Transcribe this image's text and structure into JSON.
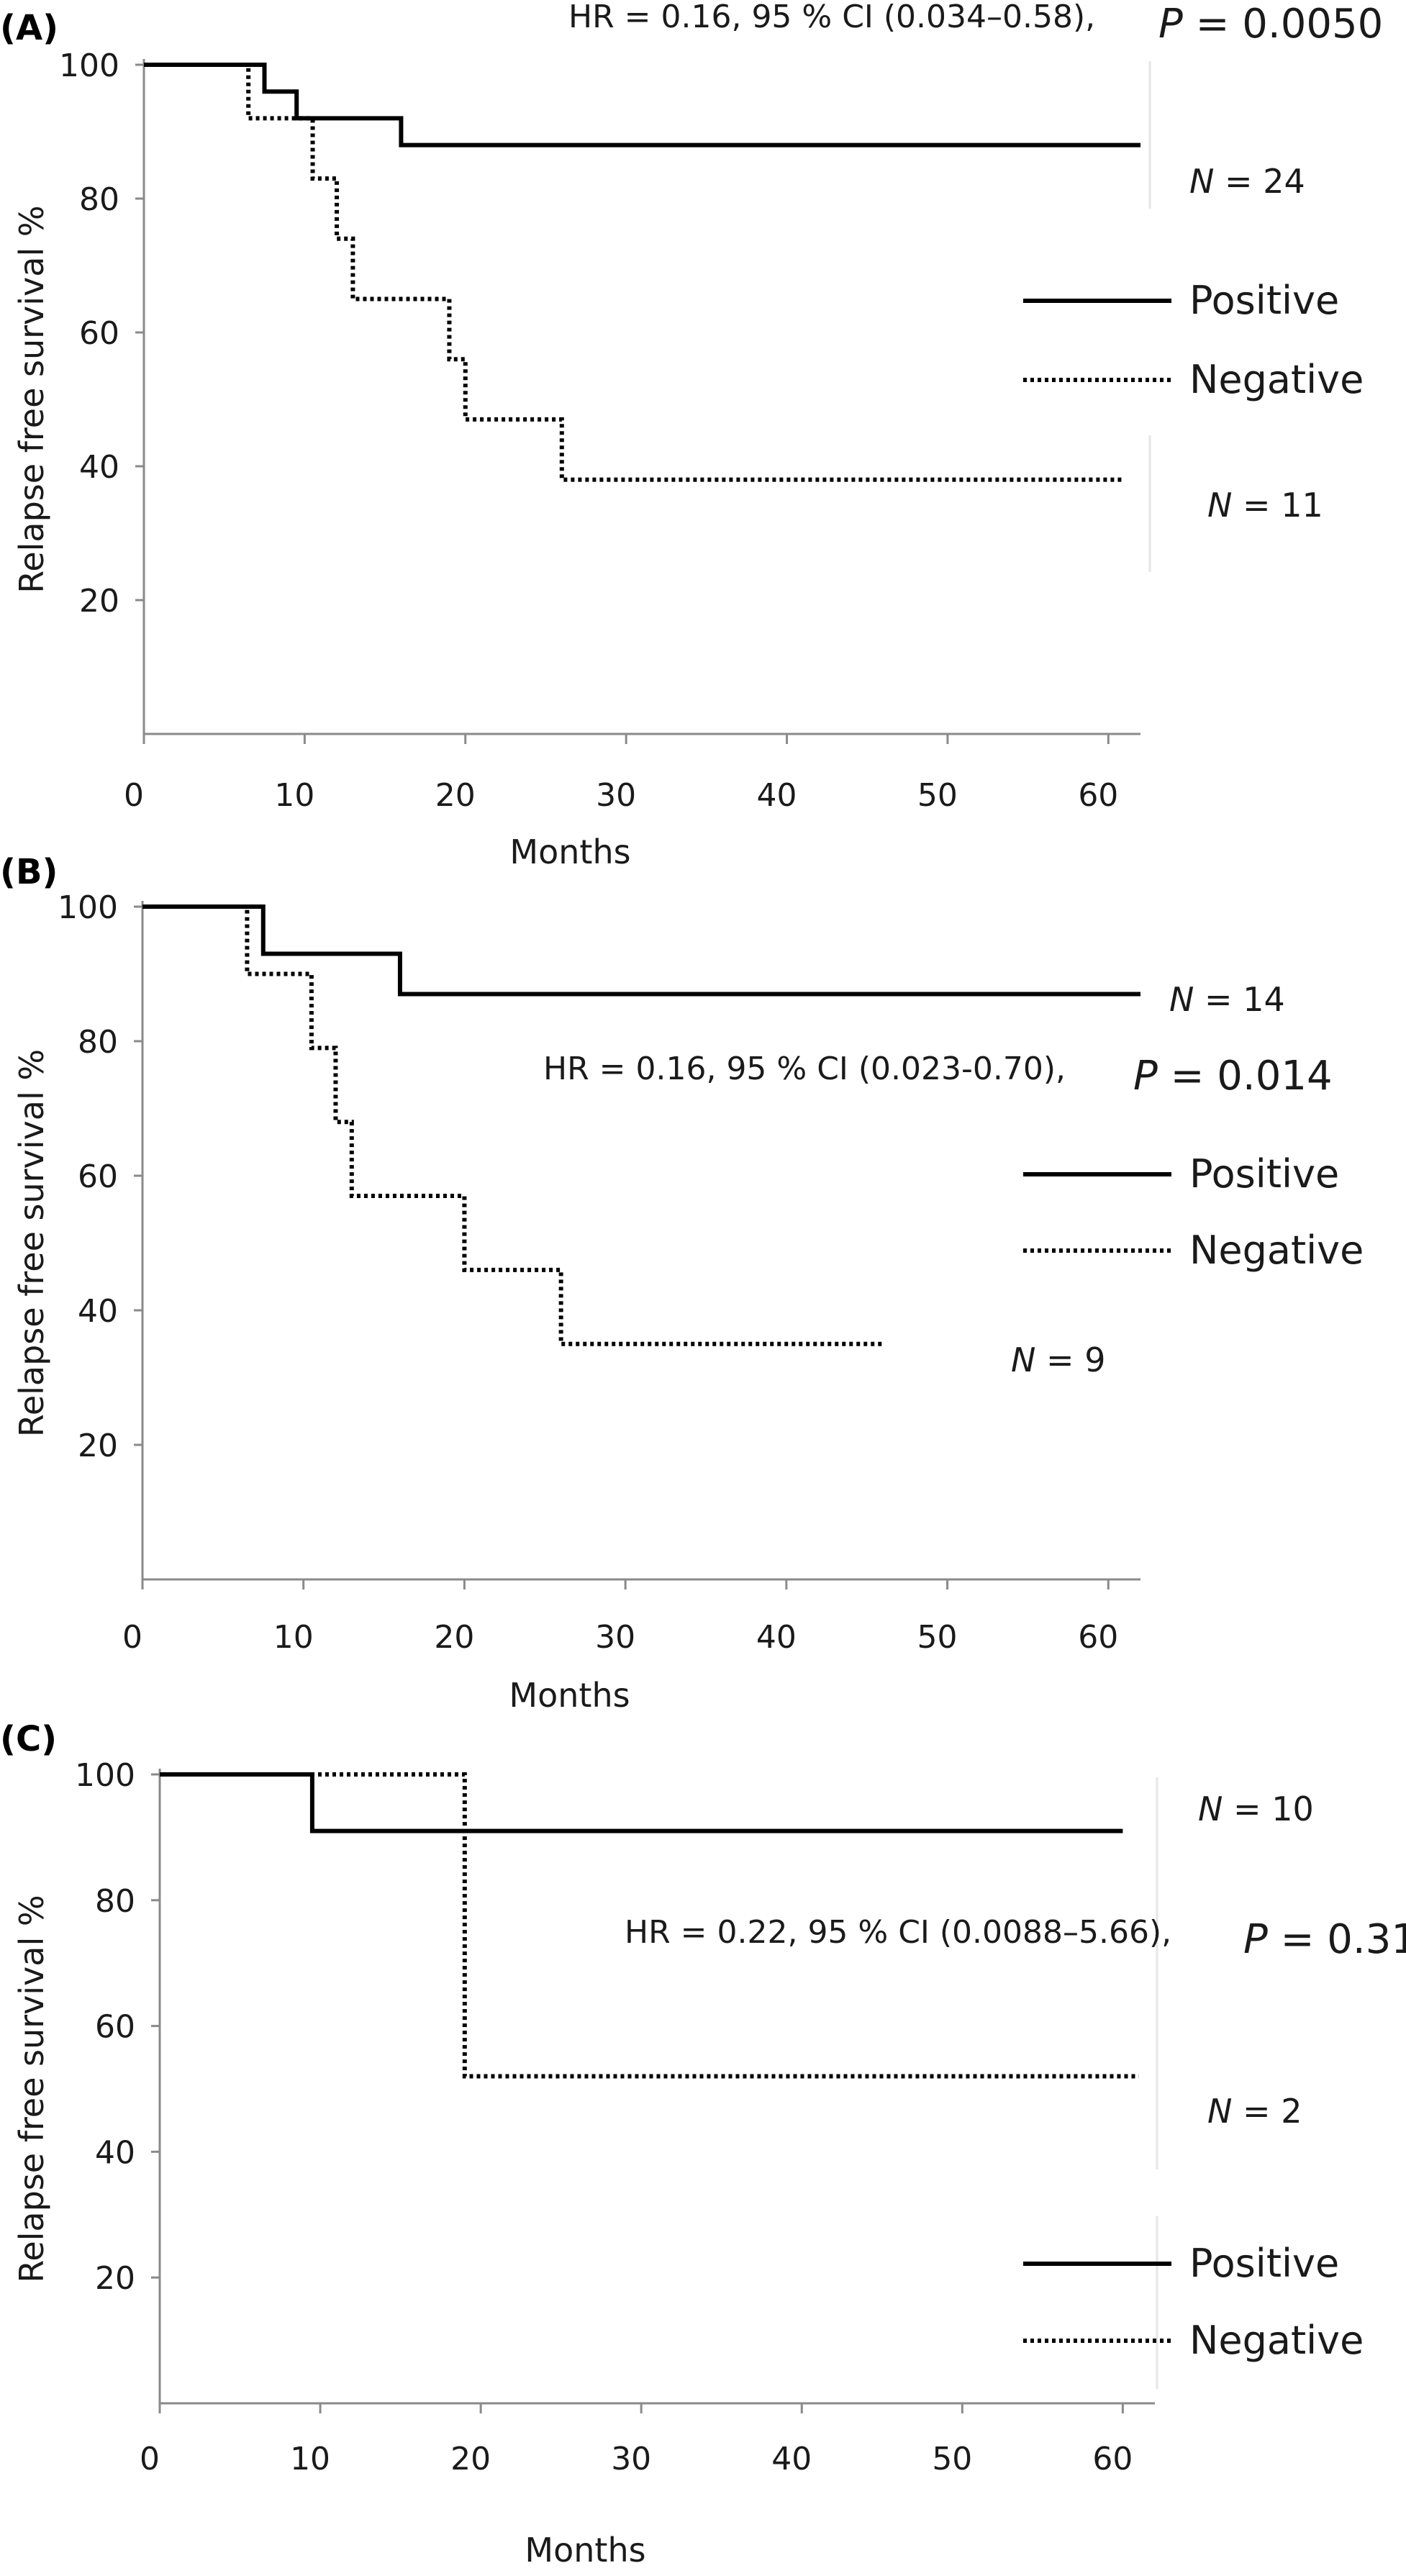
{
  "chart_data": [
    {
      "type": "line",
      "panel_label": "(A)",
      "xlabel": "Months",
      "ylabel": "Relapse free survival %",
      "xlim": [
        0,
        62
      ],
      "ylim": [
        0,
        100
      ],
      "x_ticks": [
        0,
        10,
        20,
        30,
        40,
        50,
        60
      ],
      "y_ticks": [
        20,
        40,
        60,
        80,
        100
      ],
      "annotation": {
        "hr": "HR = 0.16, 95 % CI (0.034–0.58),",
        "p": "P = 0.0050"
      },
      "legend": {
        "placement": "right",
        "entries": [
          "Positive",
          "Negative"
        ]
      },
      "series": [
        {
          "name": "Positive",
          "line_style": "solid",
          "n_label": "N = 24",
          "x": [
            0,
            7.5,
            7.5,
            9.5,
            9.5,
            16,
            16,
            62
          ],
          "y": [
            100,
            100,
            96,
            96,
            92,
            92,
            88,
            88
          ]
        },
        {
          "name": "Negative",
          "line_style": "dotted",
          "n_label": "N = 11",
          "x": [
            0,
            6.5,
            6.5,
            10.5,
            10.5,
            12,
            12,
            13,
            13,
            19,
            19,
            20,
            20,
            26,
            26,
            61
          ],
          "y": [
            100,
            100,
            92,
            92,
            83,
            83,
            74,
            74,
            65,
            65,
            56,
            56,
            47,
            47,
            38,
            38
          ]
        }
      ]
    },
    {
      "type": "line",
      "panel_label": "(B)",
      "xlabel": "Months",
      "ylabel": "Relapse free survival %",
      "xlim": [
        0,
        62
      ],
      "ylim": [
        0,
        100
      ],
      "x_ticks": [
        0,
        10,
        20,
        30,
        40,
        50,
        60
      ],
      "y_ticks": [
        20,
        40,
        60,
        80,
        100
      ],
      "annotation": {
        "hr": "HR = 0.16, 95 % CI (0.023-0.70),",
        "p": "P = 0.014"
      },
      "legend": {
        "placement": "right",
        "entries": [
          "Positive",
          "Negative"
        ]
      },
      "series": [
        {
          "name": "Positive",
          "line_style": "solid",
          "n_label": "N = 14",
          "x": [
            0,
            7.5,
            7.5,
            16,
            16,
            62
          ],
          "y": [
            100,
            100,
            93,
            93,
            87,
            87
          ]
        },
        {
          "name": "Negative",
          "line_style": "dotted",
          "n_label": "N = 9",
          "x": [
            0,
            6.5,
            6.5,
            10.5,
            10.5,
            12,
            12,
            13,
            13,
            20,
            20,
            26,
            26,
            46
          ],
          "y": [
            100,
            100,
            90,
            90,
            79,
            79,
            68,
            68,
            57,
            57,
            46,
            46,
            35,
            35
          ]
        }
      ]
    },
    {
      "type": "line",
      "panel_label": "(C)",
      "xlabel": "Months",
      "ylabel": "Relapse free survival %",
      "xlim": [
        0,
        62
      ],
      "ylim": [
        0,
        100
      ],
      "x_ticks": [
        0,
        10,
        20,
        30,
        40,
        50,
        60
      ],
      "y_ticks": [
        20,
        40,
        60,
        80,
        100
      ],
      "annotation": {
        "hr": "HR = 0.22, 95 % CI (0.0088–5.66),",
        "p": "P = 0.31"
      },
      "legend": {
        "placement": "bottom-right",
        "entries": [
          "Positive",
          "Negative"
        ]
      },
      "series": [
        {
          "name": "Positive",
          "line_style": "solid",
          "n_label": "N = 10",
          "x": [
            0,
            9.5,
            9.5,
            60
          ],
          "y": [
            100,
            100,
            91,
            91
          ]
        },
        {
          "name": "Negative",
          "line_style": "dotted",
          "n_label": "N = 2",
          "x": [
            0,
            19,
            19,
            61
          ],
          "y": [
            100,
            100,
            52,
            52
          ]
        }
      ]
    }
  ]
}
